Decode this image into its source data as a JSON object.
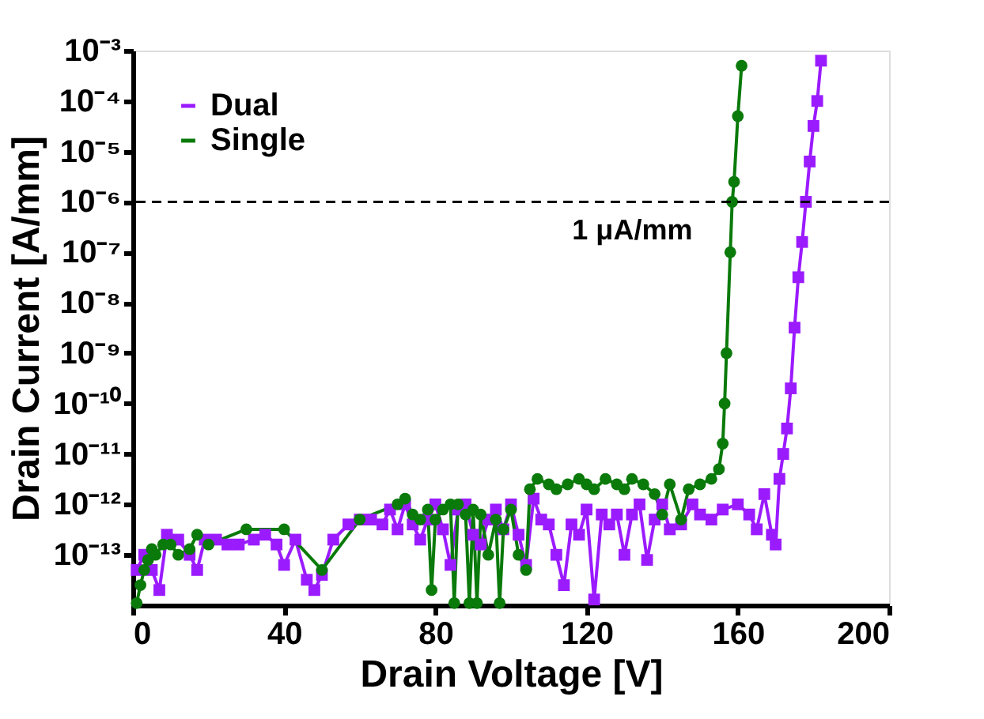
{
  "chart_data": {
    "type": "line",
    "xlabel": "Drain Voltage [V]",
    "ylabel": "Drain Current [A/mm]",
    "log": "y",
    "xlim": [
      0,
      200
    ],
    "xticks": [
      0,
      40,
      80,
      120,
      160,
      200
    ],
    "ylim": [
      1e-14,
      0.001
    ],
    "yticks": [
      {
        "value": 1e-13,
        "label": "10⁻¹³"
      },
      {
        "value": 1e-12,
        "label": "10⁻¹²"
      },
      {
        "value": 1e-11,
        "label": "10⁻¹¹"
      },
      {
        "value": 1e-10,
        "label": "10⁻¹⁰"
      },
      {
        "value": 1e-09,
        "label": "10⁻⁹"
      },
      {
        "value": 1e-08,
        "label": "10⁻⁸"
      },
      {
        "value": 1e-07,
        "label": "10⁻⁷"
      },
      {
        "value": 1e-06,
        "label": "10⁻⁶"
      },
      {
        "value": 1e-05,
        "label": "10⁻⁵"
      },
      {
        "value": 0.0001,
        "label": "10⁻⁴"
      },
      {
        "value": 0.001,
        "label": "10⁻³"
      }
    ],
    "grid": false,
    "legend": "top left",
    "line_style": "solid",
    "ref_lines": [
      {
        "axis": "y",
        "value": 1e-06,
        "label": "1 μA/mm",
        "color": "#000000",
        "line_style": "dashed"
      }
    ],
    "series": [
      {
        "name": "Dual",
        "color": "#9b1bff",
        "marker": "square",
        "x": [
          1,
          3,
          5,
          7,
          9,
          12,
          15,
          17,
          19,
          22,
          25,
          28,
          32,
          35,
          38,
          40,
          43,
          46,
          48,
          50,
          53,
          57,
          60,
          63,
          66,
          68,
          70,
          72,
          74,
          76,
          78,
          80,
          82,
          84,
          86,
          88,
          90,
          92,
          94,
          96,
          98,
          100,
          102,
          104,
          106,
          108,
          110,
          112,
          114,
          116,
          118,
          120,
          122,
          124,
          126,
          128,
          130,
          132,
          134,
          136,
          138,
          140,
          142,
          145,
          148,
          150,
          153,
          156,
          160,
          163,
          165,
          167,
          169,
          170,
          171,
          172,
          173,
          174,
          175,
          176,
          177,
          178,
          179,
          180,
          181,
          182
        ],
        "values": [
          5e-14,
          1e-13,
          5e-14,
          2e-14,
          2.5e-13,
          2e-13,
          1e-13,
          5e-14,
          2e-13,
          2e-13,
          1.6e-13,
          1.6e-13,
          2e-13,
          2.5e-13,
          1.6e-13,
          6.3e-14,
          2e-13,
          3.2e-14,
          2e-14,
          4e-14,
          2e-13,
          4e-13,
          5e-13,
          5e-13,
          4e-13,
          7.9e-13,
          3.2e-13,
          1e-12,
          4e-13,
          2e-13,
          5e-13,
          1e-12,
          3.2e-13,
          6.3e-14,
          7.9e-13,
          1e-12,
          2.5e-13,
          1.6e-13,
          5e-13,
          7.9e-13,
          3.2e-13,
          1e-12,
          2.5e-13,
          6.3e-14,
          1.3e-12,
          5e-13,
          4e-13,
          1e-13,
          2.5e-14,
          4e-13,
          2.5e-13,
          7.9e-13,
          1.3e-14,
          6.3e-13,
          4e-13,
          6.3e-13,
          1e-13,
          6.3e-13,
          1e-12,
          7.9e-14,
          5e-13,
          1e-12,
          3.2e-13,
          4e-13,
          1e-12,
          6.3e-13,
          5e-13,
          7.9e-13,
          1e-12,
          6.3e-13,
          3.2e-13,
          1.6e-12,
          2.5e-13,
          1.6e-13,
          3.2e-12,
          1e-11,
          3.2e-11,
          2e-10,
          3.2e-09,
          3.2e-08,
          1.6e-07,
          1e-06,
          6.3e-06,
          3.2e-05,
          0.0001,
          0.00063
        ]
      },
      {
        "name": "Single",
        "color": "#0a7a0a",
        "marker": "circle",
        "x": [
          1,
          2,
          3,
          4,
          5,
          6,
          8,
          10,
          12,
          15,
          17,
          20,
          30,
          40,
          50,
          60,
          70,
          72,
          74,
          76,
          78,
          79,
          80,
          82,
          84,
          85,
          86,
          88,
          89,
          90,
          91,
          92,
          94,
          96,
          97,
          98,
          100,
          102,
          104,
          105,
          107,
          110,
          112,
          115,
          118,
          120,
          122,
          125,
          128,
          130,
          132,
          135,
          138,
          140,
          142,
          145,
          147,
          150,
          153,
          155,
          156,
          156.5,
          157,
          158,
          158.5,
          159,
          160,
          161
        ],
        "values": [
          1.1e-14,
          2.5e-14,
          5e-14,
          7.9e-14,
          1.3e-13,
          1e-13,
          1.6e-13,
          1.6e-13,
          1e-13,
          1.3e-13,
          2.5e-13,
          1.6e-13,
          3.2e-13,
          3.2e-13,
          5e-14,
          5e-13,
          1e-12,
          1.3e-12,
          6.3e-13,
          5e-13,
          7.9e-13,
          2e-14,
          5e-13,
          7.9e-13,
          1e-12,
          1.1e-14,
          1e-12,
          6.3e-13,
          1.1e-14,
          7.9e-13,
          1.1e-14,
          6.3e-13,
          1e-13,
          5e-13,
          1.1e-14,
          3.2e-13,
          7.9e-13,
          1e-13,
          5e-14,
          2e-12,
          3.2e-12,
          2.5e-12,
          2e-12,
          2.5e-12,
          3.2e-12,
          2.5e-12,
          2e-12,
          3.2e-12,
          2.5e-12,
          2e-12,
          3.2e-12,
          2.5e-12,
          1.6e-12,
          6.3e-13,
          2.5e-12,
          5e-13,
          2e-12,
          2.5e-12,
          3.2e-12,
          5e-12,
          1.6e-11,
          1e-10,
          1e-09,
          1e-07,
          1e-06,
          2.5e-06,
          5e-05,
          0.0005
        ]
      }
    ]
  }
}
